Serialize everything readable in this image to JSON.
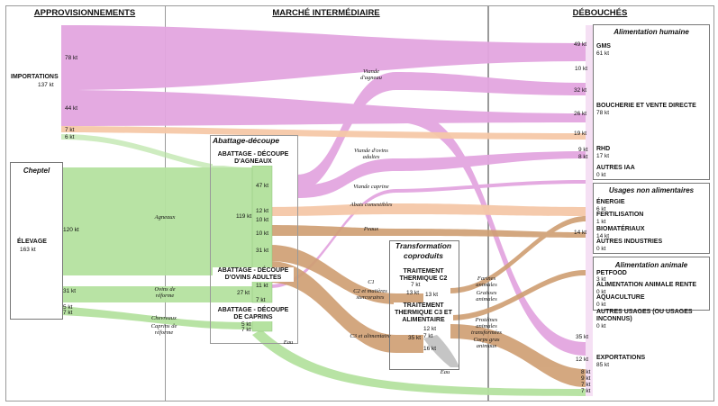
{
  "headers": {
    "approvisionnements": "APPROVISIONNEMENTS",
    "marche": "MARCHÉ INTERMÉDIAIRE",
    "debouches": "DÉBOUCHÉS"
  },
  "sources": {
    "importations": {
      "label": "IMPORTATIONS",
      "value": "137 kt",
      "flow1": "78 kt",
      "flow2": "44 kt",
      "flow3": "7 kt",
      "flow4": "6 kt"
    },
    "cheptel_title": "Cheptel",
    "elevage": {
      "label": "ÉLEVAGE",
      "value": "163 kt",
      "flow1": "120 kt",
      "flow2": "31 kt",
      "flow3": "5 kt",
      "flow4": "7 kt"
    }
  },
  "intermediate": {
    "abattage_title": "Abattage-découpe",
    "agneaux": {
      "label": "ABATTAGE - DÉCOUPE D'AGNEAUX",
      "in": "119 kt",
      "out1": "47 kt",
      "out2": "12 kt",
      "out3": "10 kt",
      "out4": "10 kt",
      "out5": "31 kt"
    },
    "ovins": {
      "label": "ABATTAGE - DÉCOUPE D'OVINS ADULTES",
      "in": "27 kt",
      "out1": "11 kt",
      "out2": "7 kt"
    },
    "caprins": {
      "label": "ABATTAGE - DÉCOUPE DE CAPRINS",
      "out1": "5 kt",
      "out2": "7 kt"
    },
    "flow_labels": {
      "agneaux": "Agneaux",
      "ovins_reforme": "Ovins de réforme",
      "chevreaux": "Chevreaux",
      "caprins_reforme": "Caprins de réforme",
      "viande_agneau": "Viande d'agneau",
      "viande_ovins": "Viande d'ovins adultes",
      "viande_caprine": "Viande caprine",
      "abats": "Abats comestibles",
      "peaux": "Peaux",
      "c1": "C1",
      "c2": "C2 et matières stercoraires",
      "c3": "C3 et alimentaire",
      "eau1": "Eau",
      "eau2": "Eau"
    },
    "transformation_title": "Transformation coproduits",
    "c2_treat": {
      "label": "TRAITEMENT THERMIQUE C2",
      "v1": "7 kt",
      "v2": "13 kt",
      "v3": "13 kt"
    },
    "c3_treat": {
      "label": "TRAITEMENT THERMIQUE C3 ET ALIMENTAIRE",
      "v1": "12 kt",
      "v2": "35 kt",
      "v3": "7 kt",
      "v4": "16 kt"
    },
    "products": {
      "farines": "Farines animales",
      "graisses": "Graisses animales",
      "proteines": "Protéines animales transformées",
      "corps_gras": "Corps gras animaux"
    }
  },
  "outlets": {
    "alim_humaine_title": "Alimentation humaine",
    "gms": {
      "label": "GMS",
      "value": "61 kt",
      "f1": "49 kt",
      "f2": "10 kt"
    },
    "boucherie": {
      "label": "BOUCHERIE ET VENTE DIRECTE",
      "value": "78 kt",
      "f1": "32 kt",
      "f2": "26 kt",
      "f3": "19 kt"
    },
    "rhd": {
      "label": "RHD",
      "value": "17 kt",
      "f1": "9 kt",
      "f2": "8 kt"
    },
    "autres_iaa": {
      "label": "AUTRES IAA",
      "value": "0 kt"
    },
    "usages_title": "Usages non alimentaires",
    "energie": {
      "label": "ÉNERGIE",
      "value": "6 kt"
    },
    "fertilisation": {
      "label": "FERTILISATION",
      "value": "1 kt"
    },
    "biomateriaux": {
      "label": "BIOMATÉRIAUX",
      "value": "14 kt",
      "f1": "14 kt"
    },
    "autres_industries": {
      "label": "AUTRES INDUSTRIES",
      "value": "0 kt"
    },
    "alim_animale_title": "Alimentation animale",
    "petfood": {
      "label": "PETFOOD",
      "value": "3 kt"
    },
    "alim_rente": {
      "label": "ALIMENTATION ANIMALE RENTE",
      "value": "0 kt"
    },
    "aquaculture": {
      "label": "AQUACULTURE",
      "value": "0 kt"
    },
    "autres_usages": {
      "label": "AUTRES USAGES (OU USAGES INCONNUS)",
      "value": "0 kt"
    },
    "exportations": {
      "label": "EXPORTATIONS",
      "value": "85 kt",
      "f1": "35 kt",
      "f2": "12 kt",
      "f3": "8 kt",
      "f4": "9 kt",
      "f5": "7 kt",
      "f6": "7 kt"
    }
  },
  "colors": {
    "pink": "#e3a6e0",
    "pink_dark": "#d78bd4",
    "peach": "#f5c8a8",
    "green": "#b5e2a0",
    "brown": "#cf9e72",
    "brown_dark": "#b8865a",
    "grey": "#bfbfbf"
  }
}
